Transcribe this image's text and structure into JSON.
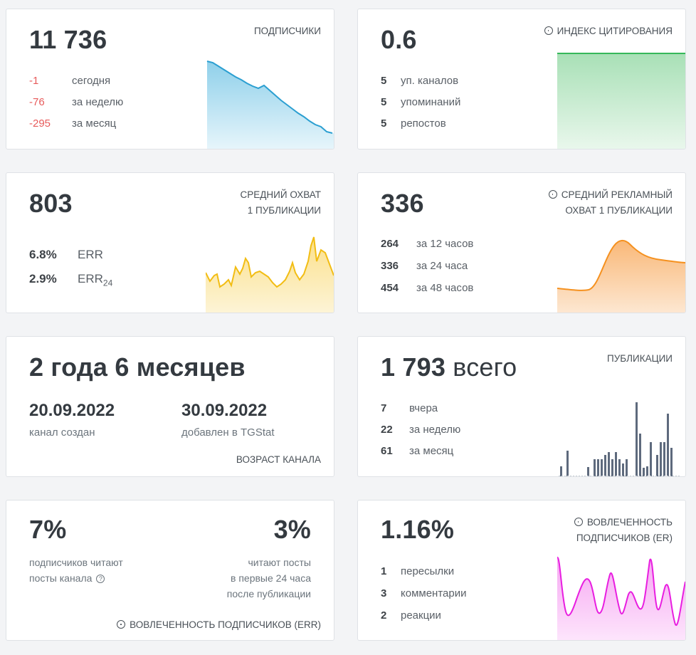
{
  "subscribers": {
    "value": "11 736",
    "title": "ПОДПИСЧИКИ",
    "rows": [
      {
        "num": "-1",
        "label": "сегодня"
      },
      {
        "num": "-76",
        "label": "за неделю"
      },
      {
        "num": "-295",
        "label": "за месяц"
      }
    ],
    "color": "#3aa9d6"
  },
  "citation": {
    "value": "0.6",
    "title": "ИНДЕКС ЦИТИРОВАНИЯ",
    "rows": [
      {
        "num": "5",
        "label": "уп. каналов"
      },
      {
        "num": "5",
        "label": "упоминаний"
      },
      {
        "num": "5",
        "label": "репостов"
      }
    ],
    "color": "#4cc46a"
  },
  "reach": {
    "value": "803",
    "title_line1": "СРЕДНИЙ ОХВАТ",
    "title_line2": "1 ПУБЛИКАЦИИ",
    "rows": [
      {
        "num": "6.8%",
        "label": "ERR"
      },
      {
        "num": "2.9%",
        "label": "ERR",
        "sub": "24"
      }
    ],
    "color": "#f5c518"
  },
  "ad_reach": {
    "value": "336",
    "title_line1": "СРЕДНИЙ РЕКЛАМНЫЙ",
    "title_line2": "ОХВАТ 1 ПУБЛИКАЦИИ",
    "rows": [
      {
        "num": "264",
        "label": "за 12 часов"
      },
      {
        "num": "336",
        "label": "за 24 часа"
      },
      {
        "num": "454",
        "label": "за 48 часов"
      }
    ],
    "color": "#f5911f"
  },
  "age": {
    "value": "2 года 6 месяцев",
    "created_date": "20.09.2022",
    "created_label": "канал создан",
    "added_date": "30.09.2022",
    "added_label": "добавлен в TGStat",
    "title": "ВОЗРАСТ КАНАЛА"
  },
  "posts": {
    "value": "1 793",
    "value_suffix": "всего",
    "title": "ПУБЛИКАЦИИ",
    "rows": [
      {
        "num": "7",
        "label": "вчера"
      },
      {
        "num": "22",
        "label": "за неделю"
      },
      {
        "num": "61",
        "label": "за месяц"
      }
    ],
    "color": "#5e6a7d"
  },
  "err": {
    "left_value": "7%",
    "left_line1": "подписчиков читают",
    "left_line2": "посты канала",
    "right_value": "3%",
    "right_line1": "читают посты",
    "right_line2": "в первые 24 часа",
    "right_line3": "после публикации",
    "title": "ВОВЛЕЧЕННОСТЬ ПОДПИСЧИКОВ (ERR)",
    "help_glyph": "?"
  },
  "er": {
    "value": "1.16%",
    "title_line1": "ВОВЛЕЧЕННОСТЬ",
    "title_line2": "ПОДПИСЧИКОВ (ER)",
    "rows": [
      {
        "num": "1",
        "label": "пересылки"
      },
      {
        "num": "3",
        "label": "комментарии"
      },
      {
        "num": "2",
        "label": "реакции"
      }
    ],
    "color": "#e81ee0"
  }
}
